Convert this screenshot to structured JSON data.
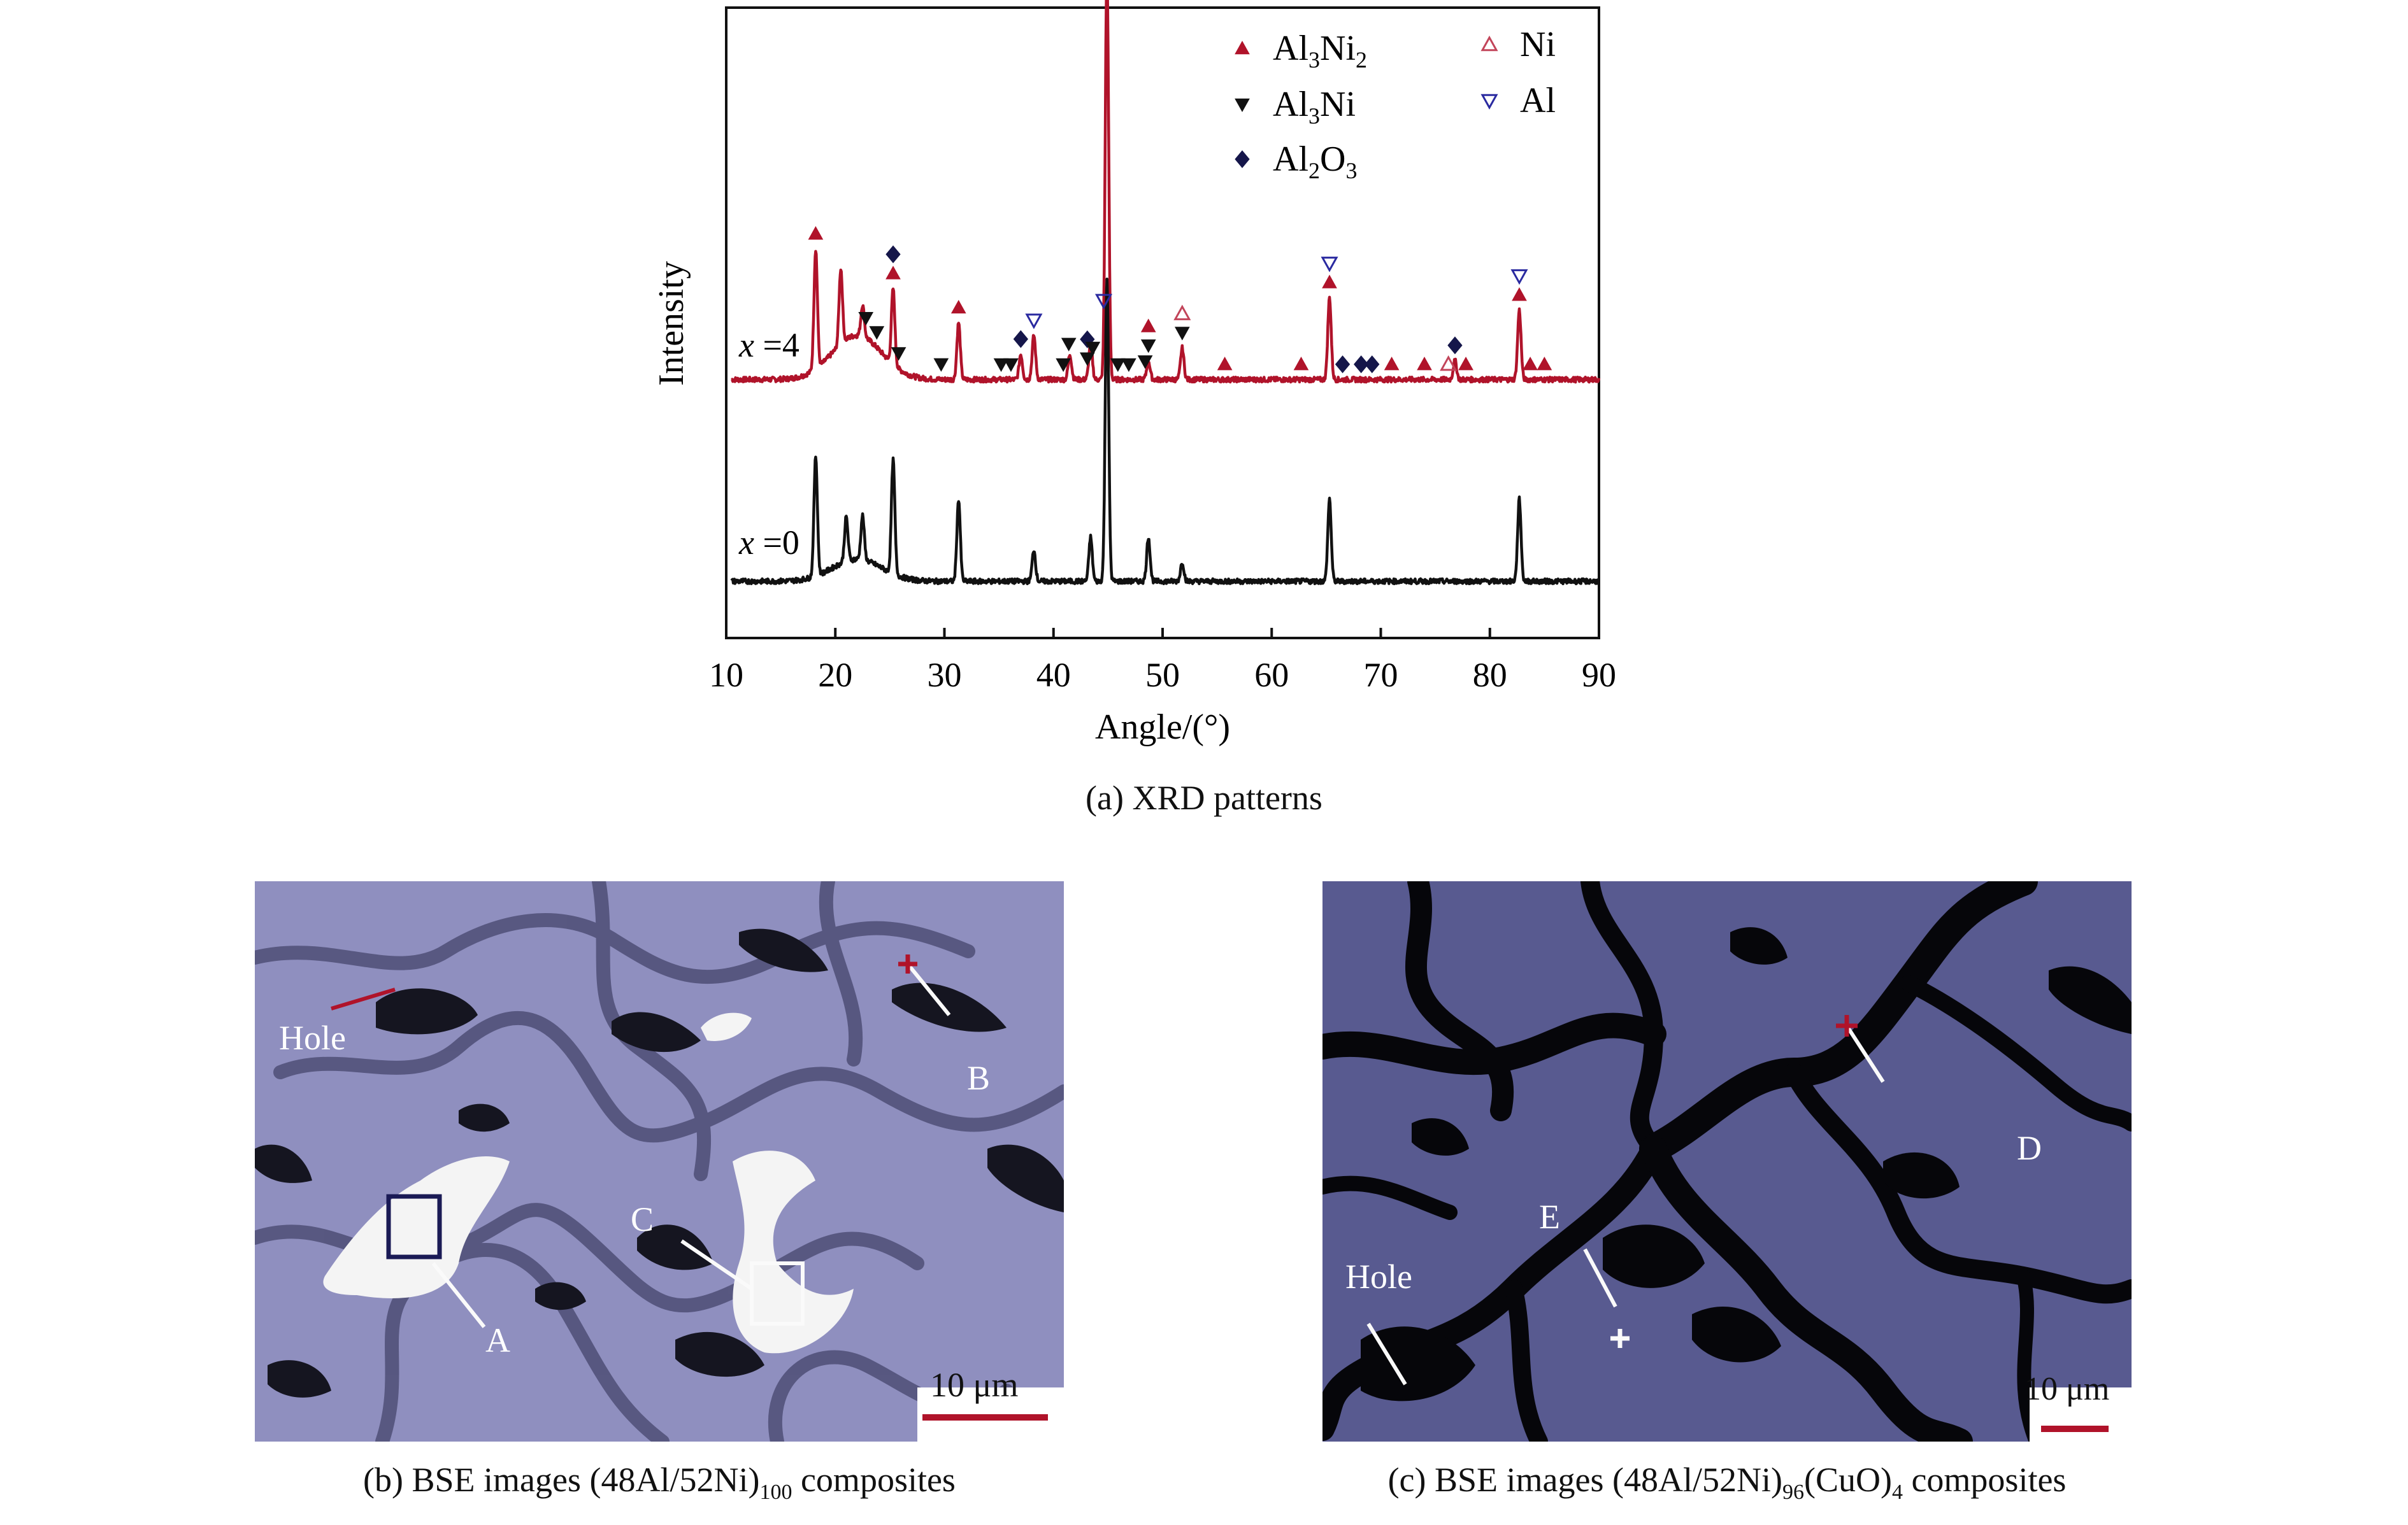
{
  "chart_data": {
    "type": "line",
    "title": "",
    "xlabel": "Angle/(°)",
    "ylabel": "Intensity",
    "xlim": [
      10,
      90
    ],
    "xticks": [
      10,
      20,
      30,
      40,
      50,
      60,
      70,
      80,
      90
    ],
    "grid": false,
    "y_axis_numeric": false,
    "legend": {
      "placement": "top-right",
      "entries": [
        {
          "label": "Al3Ni2",
          "marker": "triangle-up-filled",
          "color": "#b0132a"
        },
        {
          "label": "Al3Ni",
          "marker": "triangle-down-filled",
          "color": "#111111"
        },
        {
          "label": "Al2O3",
          "marker": "diamond-filled",
          "color": "#15164a"
        },
        {
          "label": "Ni",
          "marker": "triangle-up-open",
          "color": "#c2455a"
        },
        {
          "label": "Al",
          "marker": "triangle-down-open",
          "color": "#2a2aa0"
        }
      ]
    },
    "series": [
      {
        "name": "x=4",
        "color": "#b0132a",
        "baseline": 0.41,
        "peaks": [
          [
            18.2,
            0.19
          ],
          [
            20.5,
            0.12
          ],
          [
            22.5,
            0.05
          ],
          [
            25.3,
            0.12
          ],
          [
            31.3,
            0.09
          ],
          [
            37.0,
            0.04
          ],
          [
            38.2,
            0.07
          ],
          [
            41.5,
            0.04
          ],
          [
            43.4,
            0.06
          ],
          [
            44.9,
            0.65
          ],
          [
            48.7,
            0.03
          ],
          [
            51.8,
            0.05
          ],
          [
            65.3,
            0.13
          ],
          [
            76.8,
            0.03
          ],
          [
            82.7,
            0.11
          ]
        ],
        "annotations": [
          {
            "x": 18.2,
            "markers": [
              "triangle-up-filled"
            ]
          },
          {
            "x": 22.8,
            "markers": [
              "triangle-down-filled"
            ]
          },
          {
            "x": 23.8,
            "markers": [
              "triangle-down-filled"
            ]
          },
          {
            "x": 25.3,
            "markers": [
              "diamond-filled",
              "triangle-up-filled"
            ]
          },
          {
            "x": 25.8,
            "markers": [
              "triangle-down-filled"
            ]
          },
          {
            "x": 29.7,
            "markers": [
              "triangle-down-filled"
            ]
          },
          {
            "x": 31.3,
            "markers": [
              "triangle-up-filled"
            ]
          },
          {
            "x": 35.2,
            "markers": [
              "triangle-down-filled"
            ]
          },
          {
            "x": 36.1,
            "markers": [
              "triangle-down-filled"
            ]
          },
          {
            "x": 37.0,
            "markers": [
              "diamond-filled"
            ]
          },
          {
            "x": 38.2,
            "markers": [
              "triangle-down-open"
            ]
          },
          {
            "x": 40.9,
            "markers": [
              "triangle-down-filled"
            ]
          },
          {
            "x": 41.4,
            "markers": [
              "triangle-down-filled"
            ]
          },
          {
            "x": 43.1,
            "markers": [
              "diamond-filled",
              "triangle-down-filled"
            ]
          },
          {
            "x": 43.6,
            "markers": [
              "triangle-down-filled"
            ]
          },
          {
            "x": 44.9,
            "markers": [
              "triangle-up-open",
              "triangle-up-filled",
              "triangle-down-filled"
            ]
          },
          {
            "x": 44.6,
            "markers": [
              "triangle-down-open"
            ]
          },
          {
            "x": 45.9,
            "markers": [
              "triangle-down-filled"
            ]
          },
          {
            "x": 46.9,
            "markers": [
              "triangle-down-filled"
            ]
          },
          {
            "x": 48.7,
            "markers": [
              "triangle-up-filled",
              "triangle-down-filled"
            ]
          },
          {
            "x": 48.4,
            "markers": [
              "triangle-down-filled"
            ]
          },
          {
            "x": 51.8,
            "markers": [
              "triangle-up-open",
              "triangle-down-filled"
            ]
          },
          {
            "x": 55.7,
            "markers": [
              "triangle-up-filled"
            ]
          },
          {
            "x": 62.7,
            "markers": [
              "triangle-up-filled"
            ]
          },
          {
            "x": 65.3,
            "markers": [
              "triangle-down-open",
              "triangle-up-filled"
            ]
          },
          {
            "x": 66.5,
            "markers": [
              "diamond-filled"
            ]
          },
          {
            "x": 68.2,
            "markers": [
              "diamond-filled"
            ]
          },
          {
            "x": 69.2,
            "markers": [
              "diamond-filled"
            ]
          },
          {
            "x": 71.0,
            "markers": [
              "triangle-up-filled"
            ]
          },
          {
            "x": 74.0,
            "markers": [
              "triangle-up-filled"
            ]
          },
          {
            "x": 76.2,
            "markers": [
              "triangle-up-open"
            ]
          },
          {
            "x": 76.8,
            "markers": [
              "diamond-filled"
            ]
          },
          {
            "x": 77.8,
            "markers": [
              "triangle-up-filled"
            ]
          },
          {
            "x": 82.7,
            "markers": [
              "triangle-down-open",
              "triangle-up-filled"
            ]
          },
          {
            "x": 83.7,
            "markers": [
              "triangle-up-filled"
            ]
          },
          {
            "x": 85.0,
            "markers": [
              "triangle-up-filled"
            ]
          }
        ]
      },
      {
        "name": "x=0",
        "color": "#111111",
        "baseline": 0.09,
        "peaks": [
          [
            18.2,
            0.19
          ],
          [
            21.0,
            0.07
          ],
          [
            22.5,
            0.07
          ],
          [
            25.3,
            0.18
          ],
          [
            31.3,
            0.13
          ],
          [
            38.2,
            0.05
          ],
          [
            43.4,
            0.07
          ],
          [
            44.9,
            0.48
          ],
          [
            48.7,
            0.07
          ],
          [
            51.8,
            0.03
          ],
          [
            65.3,
            0.13
          ],
          [
            82.7,
            0.13
          ]
        ]
      }
    ]
  },
  "captions": {
    "a": "(a) XRD patterns",
    "b_pre": "(b) BSE images (48Al/52Ni)",
    "b_sub": "100",
    "b_post": " composites",
    "c_pre": "(c) BSE images (48Al/52Ni)",
    "c_sub1": "96",
    "c_mid": "(CuO)",
    "c_sub2": "4",
    "c_post": " composites"
  },
  "panel_b": {
    "labels": {
      "hole": "Hole",
      "a": "A",
      "b": "B",
      "c": "C"
    },
    "scale_bar": "10 μm",
    "colors": {
      "matrix": "#8f8fbf",
      "phase": "#a6a6cf",
      "bright": "#f4f4f4",
      "pores": "#151520",
      "marker": "#b0132a"
    }
  },
  "panel_c": {
    "labels": {
      "hole": "Hole",
      "d": "D",
      "e": "E"
    },
    "scale_bar": "10 μm",
    "colors": {
      "matrix": "#585a90",
      "pores": "#06060a",
      "marker": "#b0132a"
    }
  }
}
